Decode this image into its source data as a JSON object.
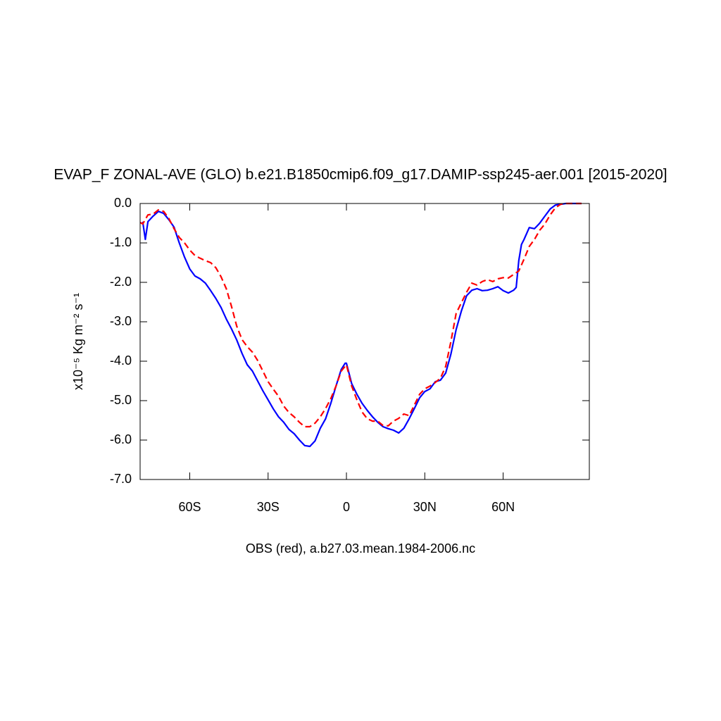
{
  "chart_data": {
    "type": "line",
    "title": "EVAP_F ZONAL-AVE (GLO) b.e21.B1850cmip6.f09_g17.DAMIP-ssp245-aer.001 [2015-2020]",
    "xlabel": "OBS (red), a.b27.03.mean.1984-2006.nc",
    "ylabel": "x10⁻⁵ Kg m⁻² s⁻¹",
    "xlim": [
      -79,
      93
    ],
    "ylim": [
      -7,
      0
    ],
    "xticks": [
      {
        "value": -60,
        "label": "60S"
      },
      {
        "value": -30,
        "label": "30S"
      },
      0,
      {
        "value": 30,
        "label": "30N"
      },
      {
        "value": 60,
        "label": "60N"
      }
    ],
    "yticks": [
      {
        "value": 0,
        "label": "0.0"
      },
      {
        "value": -1,
        "label": "-1.0"
      },
      {
        "value": -2,
        "label": "-2.0"
      },
      {
        "value": -3,
        "label": "-3.0"
      },
      {
        "value": -4,
        "label": "-4.0"
      },
      {
        "value": -5,
        "label": "-5.0"
      },
      {
        "value": -6,
        "label": "-6.0"
      },
      {
        "value": -7,
        "label": "-7.0"
      }
    ],
    "series": [
      {
        "color": "#0000ff",
        "dashed": false,
        "x": [
          -78,
          -77,
          -76,
          -74,
          -72,
          -70,
          -68,
          -66,
          -64,
          -62,
          -60,
          -58,
          -56,
          -54,
          -52,
          -50,
          -48,
          -46,
          -44,
          -42,
          -40,
          -38,
          -36,
          -34,
          -32,
          -30,
          -28,
          -26,
          -24,
          -22,
          -20,
          -18,
          -16,
          -14,
          -12,
          -10,
          -8,
          -6,
          -4,
          -2,
          -0.5,
          0,
          2,
          4,
          6,
          8,
          10,
          12,
          14,
          16,
          18,
          20,
          22,
          24,
          26,
          28,
          30,
          32,
          34,
          36,
          38,
          40,
          42,
          44,
          46,
          48,
          50,
          52,
          54,
          56,
          58,
          60,
          62,
          64,
          65,
          66,
          67,
          68,
          70,
          72,
          74,
          76,
          78,
          80,
          82,
          84,
          86,
          88,
          90
        ],
        "values": [
          -0.46,
          -0.91,
          -0.46,
          -0.32,
          -0.2,
          -0.25,
          -0.41,
          -0.6,
          -1.0,
          -1.36,
          -1.66,
          -1.84,
          -1.91,
          -2.02,
          -2.21,
          -2.41,
          -2.64,
          -2.93,
          -3.18,
          -3.46,
          -3.8,
          -4.09,
          -4.25,
          -4.5,
          -4.75,
          -4.98,
          -5.21,
          -5.41,
          -5.55,
          -5.73,
          -5.84,
          -6.0,
          -6.14,
          -6.16,
          -6.02,
          -5.7,
          -5.46,
          -5.07,
          -4.63,
          -4.21,
          -4.05,
          -4.05,
          -4.57,
          -4.84,
          -5.07,
          -5.25,
          -5.41,
          -5.55,
          -5.66,
          -5.71,
          -5.75,
          -5.82,
          -5.7,
          -5.46,
          -5.2,
          -4.93,
          -4.77,
          -4.7,
          -4.52,
          -4.48,
          -4.3,
          -3.82,
          -3.2,
          -2.73,
          -2.34,
          -2.2,
          -2.16,
          -2.21,
          -2.2,
          -2.16,
          -2.11,
          -2.21,
          -2.27,
          -2.2,
          -2.13,
          -1.45,
          -1.04,
          -0.91,
          -0.61,
          -0.64,
          -0.5,
          -0.32,
          -0.14,
          -0.04,
          -0.02,
          0,
          0,
          0,
          0
        ]
      },
      {
        "color": "#ff0000",
        "dashed": true,
        "x": [
          -79,
          -78,
          -76,
          -74,
          -72,
          -70,
          -68,
          -66,
          -64,
          -62,
          -60,
          -58,
          -56,
          -54,
          -52,
          -50,
          -48,
          -46,
          -44,
          -42,
          -40,
          -38,
          -36,
          -34,
          -32,
          -30,
          -28,
          -26,
          -24,
          -22,
          -20,
          -18,
          -16,
          -14,
          -12,
          -10,
          -8,
          -6,
          -4,
          -2,
          0,
          2,
          4,
          6,
          8,
          10,
          12,
          14,
          16,
          18,
          20,
          22,
          24,
          26,
          28,
          30,
          32,
          34,
          36,
          38,
          40,
          42,
          44,
          46,
          48,
          50,
          52,
          54,
          56,
          58,
          60,
          62,
          64,
          66,
          68,
          70,
          72,
          74,
          76,
          78,
          80,
          82,
          84,
          86,
          88,
          90
        ],
        "values": [
          -0.48,
          -0.52,
          -0.29,
          -0.27,
          -0.16,
          -0.2,
          -0.38,
          -0.64,
          -0.86,
          -1.0,
          -1.18,
          -1.32,
          -1.39,
          -1.45,
          -1.5,
          -1.63,
          -1.86,
          -2.16,
          -2.61,
          -3.11,
          -3.45,
          -3.63,
          -3.77,
          -3.98,
          -4.25,
          -4.52,
          -4.71,
          -4.89,
          -5.14,
          -5.3,
          -5.41,
          -5.55,
          -5.66,
          -5.66,
          -5.57,
          -5.41,
          -5.2,
          -4.95,
          -4.63,
          -4.25,
          -4.09,
          -4.63,
          -4.98,
          -5.29,
          -5.46,
          -5.52,
          -5.52,
          -5.63,
          -5.64,
          -5.52,
          -5.45,
          -5.34,
          -5.38,
          -5.11,
          -4.84,
          -4.7,
          -4.63,
          -4.54,
          -4.43,
          -4.13,
          -3.5,
          -2.79,
          -2.52,
          -2.25,
          -2.02,
          -2.07,
          -1.98,
          -1.93,
          -1.98,
          -1.91,
          -1.88,
          -1.89,
          -1.8,
          -1.71,
          -1.41,
          -1.09,
          -0.91,
          -0.68,
          -0.52,
          -0.29,
          -0.11,
          -0.02,
          0,
          0,
          0,
          0
        ]
      }
    ]
  }
}
